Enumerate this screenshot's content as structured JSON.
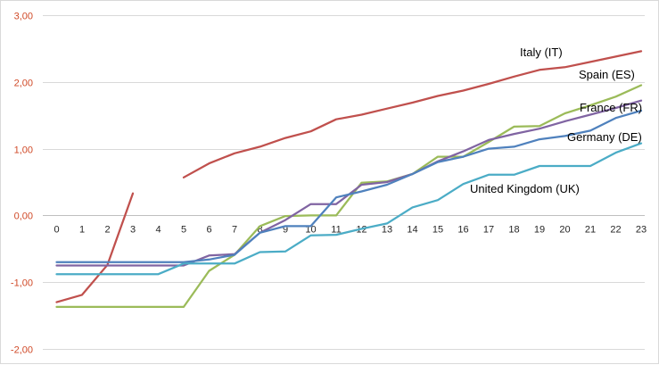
{
  "chart_data": {
    "type": "line",
    "x": [
      0,
      1,
      2,
      3,
      4,
      5,
      6,
      7,
      8,
      9,
      10,
      11,
      12,
      13,
      14,
      15,
      16,
      17,
      18,
      19,
      20,
      21,
      22,
      23
    ],
    "ylim": [
      -2,
      3
    ],
    "yticks": [
      -2,
      -1,
      0,
      1,
      2,
      3
    ],
    "ytick_labels": [
      "-2,00",
      "-1,00",
      "0,00",
      "1,00",
      "2,00",
      "3,00"
    ],
    "xtick_labels": [
      "0",
      "1",
      "2",
      "3",
      "4",
      "5",
      "6",
      "7",
      "8",
      "9",
      "10",
      "11",
      "12",
      "13",
      "14",
      "15",
      "16",
      "17",
      "18",
      "19",
      "20",
      "21",
      "22",
      "23"
    ],
    "grid": "horizontal",
    "legend": "none",
    "series": [
      {
        "name": "Italy (IT)",
        "color": "#c0504d",
        "values": [
          -1.3,
          -1.19,
          -0.74,
          0.33,
          null,
          0.57,
          0.78,
          0.93,
          1.03,
          1.16,
          1.26,
          1.44,
          1.51,
          1.6,
          1.69,
          1.79,
          1.87,
          1.97,
          2.08,
          2.18,
          2.22,
          2.3,
          2.38,
          2.46
        ]
      },
      {
        "name": "Spain (ES)",
        "color": "#9bbb59",
        "values": [
          -1.37,
          -1.37,
          -1.37,
          -1.37,
          -1.37,
          -1.37,
          -0.83,
          -0.59,
          -0.16,
          -0.01,
          0.0,
          0.0,
          0.49,
          0.51,
          0.62,
          0.88,
          0.88,
          1.1,
          1.33,
          1.34,
          1.53,
          1.65,
          1.78,
          1.95
        ]
      },
      {
        "name": "France (FR)",
        "color": "#8064a2",
        "values": [
          -0.75,
          -0.75,
          -0.75,
          -0.75,
          -0.75,
          -0.75,
          -0.6,
          -0.58,
          -0.26,
          -0.07,
          0.17,
          0.17,
          0.46,
          0.5,
          0.62,
          0.81,
          0.96,
          1.13,
          1.22,
          1.3,
          1.41,
          1.51,
          1.61,
          1.72
        ]
      },
      {
        "name": "Germany (DE)",
        "color": "#4f81bd",
        "values": [
          -0.7,
          -0.7,
          -0.7,
          -0.7,
          -0.7,
          -0.7,
          -0.66,
          -0.59,
          -0.26,
          -0.16,
          -0.16,
          0.27,
          0.36,
          0.46,
          0.62,
          0.8,
          0.88,
          1.0,
          1.03,
          1.14,
          1.19,
          1.27,
          1.46,
          1.57
        ]
      },
      {
        "name": "United Kingdom (UK)",
        "color": "#4bacc6",
        "values": [
          -0.88,
          -0.88,
          -0.88,
          -0.88,
          -0.88,
          -0.72,
          -0.72,
          -0.72,
          -0.55,
          -0.54,
          -0.3,
          -0.29,
          -0.2,
          -0.12,
          0.12,
          0.23,
          0.47,
          0.61,
          0.61,
          0.74,
          0.74,
          0.74,
          0.94,
          1.08
        ]
      }
    ]
  }
}
